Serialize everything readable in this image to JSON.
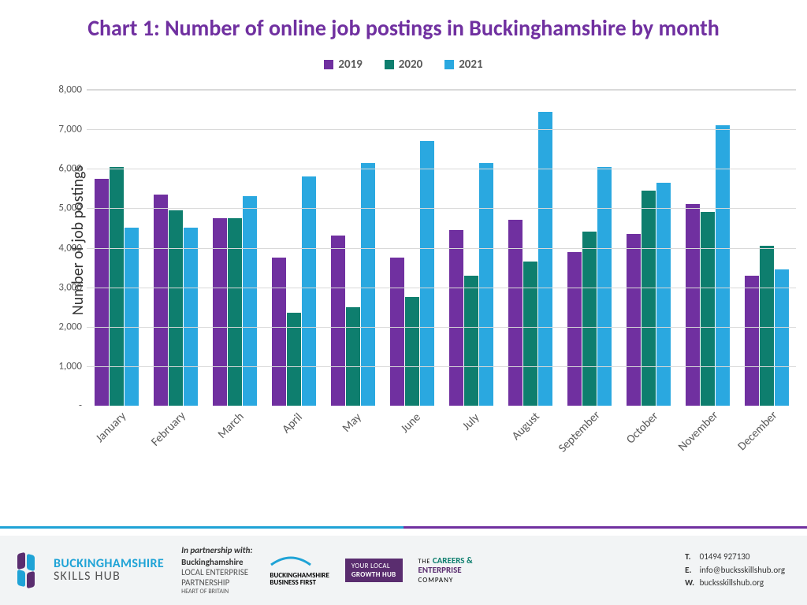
{
  "chart": {
    "type": "bar-grouped",
    "title": "Chart 1: Number of online job postings in Buckinghamshire by month",
    "title_color": "#7030a0",
    "title_fontsize": 28,
    "ylabel": "Number of job postings",
    "categories": [
      "January",
      "February",
      "March",
      "April",
      "May",
      "June",
      "July",
      "August",
      "September",
      "October",
      "November",
      "December"
    ],
    "series": [
      {
        "name": "2019",
        "color": "#7030a0",
        "values": [
          5750,
          5350,
          4750,
          3750,
          4300,
          3750,
          4450,
          4700,
          3900,
          4350,
          5100,
          3300
        ]
      },
      {
        "name": "2020",
        "color": "#0e7e6e",
        "values": [
          6050,
          4950,
          4750,
          2350,
          2500,
          2750,
          3300,
          3650,
          4400,
          5450,
          4900,
          4050
        ]
      },
      {
        "name": "2021",
        "color": "#2aa8e0",
        "values": [
          4500,
          4500,
          5300,
          5800,
          6150,
          6700,
          6150,
          7450,
          6050,
          5650,
          7100,
          3450
        ]
      }
    ],
    "ylim": [
      0,
      8000
    ],
    "ytick_step": 1000,
    "grid_color": "#d9d9d9",
    "background_color": "#ffffff",
    "xlabel_rotation": -45,
    "label_fontsize": 15
  },
  "footer": {
    "separator_colors": [
      "#1fa3d6",
      "#7030a0"
    ],
    "band_bg": "#f2f4f5",
    "bsh": {
      "line1": "BUCKINGHAMSHIRE",
      "line2": "SKILLS HUB",
      "main_color": "#1fa3d6",
      "sub_color": "#555",
      "mark_purple": "#5a2d6f",
      "mark_blue": "#1fa3d6"
    },
    "partnership": {
      "label": "In partnership with:",
      "line1": "Buckinghamshire",
      "line2": "LOCAL ENTERPRISE",
      "line3": "PARTNERSHIP",
      "line4": "HEART OF BRITAIN"
    },
    "bbf": {
      "line1": "BUCKINGHAMSHIRE",
      "line2": "BUSINESS FIRST",
      "accent": "#1fa3d6"
    },
    "growth_hub": {
      "line1": "YOUR LOCAL",
      "line2": "GROWTH HUB"
    },
    "careers": {
      "line1": "CAREERS &",
      "line2": "ENTERPRISE",
      "line3": "COMPANY",
      "accent1": "#0e7e6e",
      "accent2": "#5a2d6f"
    },
    "contact": {
      "tel_label": "T.",
      "tel": "01494 927130",
      "email_label": "E.",
      "email": "info@bucksskillshub.org",
      "web_label": "W.",
      "web": "bucksskillshub.org"
    }
  }
}
